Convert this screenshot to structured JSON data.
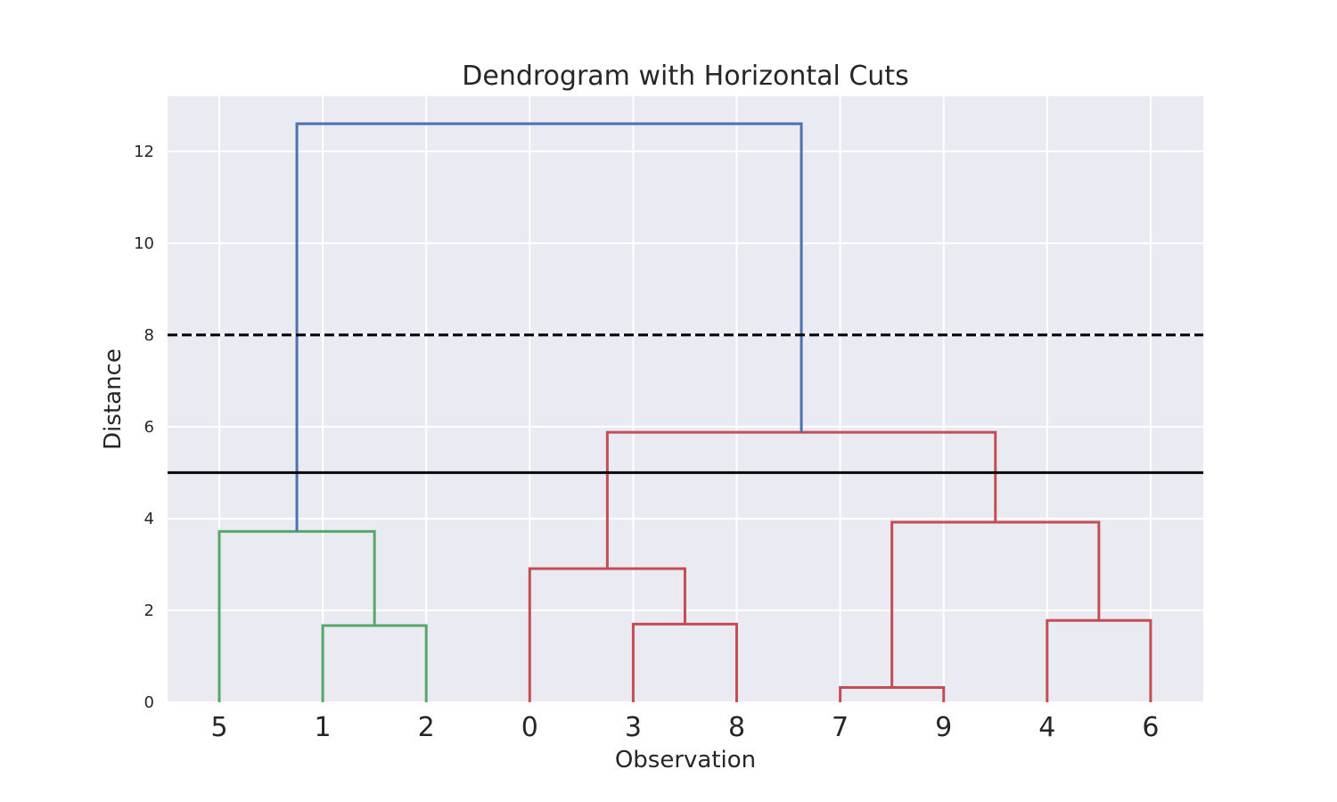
{
  "chart_data": {
    "type": "dendrogram",
    "title": "Dendrogram with Horizontal Cuts",
    "xlabel": "Observation",
    "ylabel": "Distance",
    "ylim": [
      0,
      13.2
    ],
    "yticks": [
      0,
      2,
      4,
      6,
      8,
      10,
      12
    ],
    "grid": true,
    "leaf_order": [
      "5",
      "1",
      "2",
      "0",
      "3",
      "8",
      "7",
      "9",
      "4",
      "6"
    ],
    "links": [
      {
        "left": "1",
        "right": "2",
        "height": 1.67,
        "color": "#55a868"
      },
      {
        "left": "5",
        "right": "[1,2]",
        "height": 3.72,
        "color": "#55a868"
      },
      {
        "left": "3",
        "right": "8",
        "height": 1.7,
        "color": "#c44e52"
      },
      {
        "left": "0",
        "right": "[3,8]",
        "height": 2.91,
        "color": "#c44e52"
      },
      {
        "left": "7",
        "right": "9",
        "height": 0.32,
        "color": "#c44e52"
      },
      {
        "left": "4",
        "right": "6",
        "height": 1.78,
        "color": "#c44e52"
      },
      {
        "left": "[7,9]",
        "right": "[4,6]",
        "height": 3.92,
        "color": "#c44e52"
      },
      {
        "left": "[0,3,8]",
        "right": "[7,9,4,6]",
        "height": 5.88,
        "color": "#c44e52"
      },
      {
        "left": "[5,1,2]",
        "right": "[0,3,8,7,9,4,6]",
        "height": 12.6,
        "color": "#4c72b0"
      }
    ],
    "cut_lines": [
      {
        "y": 8,
        "style": "dashed",
        "color": "#000000"
      },
      {
        "y": 5,
        "style": "solid",
        "color": "#000000"
      }
    ]
  },
  "colors": {
    "plot_background": "#eaeaf2",
    "grid": "#ffffff",
    "text": "#262626"
  }
}
